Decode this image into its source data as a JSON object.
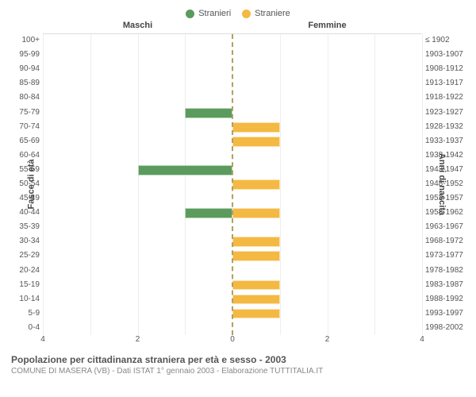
{
  "chart": {
    "type": "population-pyramid",
    "background_color": "#ffffff",
    "grid_color": "#eeeeee",
    "centerline_color": "#b0a060",
    "legend": [
      {
        "label": "Stranieri",
        "color": "#5b9b5d"
      },
      {
        "label": "Straniere",
        "color": "#f4b942"
      }
    ],
    "header_left": "Maschi",
    "header_right": "Femmine",
    "ylabel_left": "Fasce di età",
    "ylabel_right": "Anni di nascita",
    "x_max": 4,
    "x_ticks_left": [
      4,
      2,
      0
    ],
    "x_ticks_right": [
      0,
      2,
      4
    ],
    "label_fontsize": 10,
    "rows": [
      {
        "age": "100+",
        "birth": "≤ 1902",
        "m": 0,
        "f": 0
      },
      {
        "age": "95-99",
        "birth": "1903-1907",
        "m": 0,
        "f": 0
      },
      {
        "age": "90-94",
        "birth": "1908-1912",
        "m": 0,
        "f": 0
      },
      {
        "age": "85-89",
        "birth": "1913-1917",
        "m": 0,
        "f": 0
      },
      {
        "age": "80-84",
        "birth": "1918-1922",
        "m": 0,
        "f": 0
      },
      {
        "age": "75-79",
        "birth": "1923-1927",
        "m": 1,
        "f": 0
      },
      {
        "age": "70-74",
        "birth": "1928-1932",
        "m": 0,
        "f": 1
      },
      {
        "age": "65-69",
        "birth": "1933-1937",
        "m": 0,
        "f": 1
      },
      {
        "age": "60-64",
        "birth": "1938-1942",
        "m": 0,
        "f": 0
      },
      {
        "age": "55-59",
        "birth": "1943-1947",
        "m": 2,
        "f": 0
      },
      {
        "age": "50-54",
        "birth": "1948-1952",
        "m": 0,
        "f": 1
      },
      {
        "age": "45-49",
        "birth": "1953-1957",
        "m": 0,
        "f": 0
      },
      {
        "age": "40-44",
        "birth": "1958-1962",
        "m": 1,
        "f": 1
      },
      {
        "age": "35-39",
        "birth": "1963-1967",
        "m": 0,
        "f": 0
      },
      {
        "age": "30-34",
        "birth": "1968-1972",
        "m": 0,
        "f": 1
      },
      {
        "age": "25-29",
        "birth": "1973-1977",
        "m": 0,
        "f": 1
      },
      {
        "age": "20-24",
        "birth": "1978-1982",
        "m": 0,
        "f": 0
      },
      {
        "age": "15-19",
        "birth": "1983-1987",
        "m": 0,
        "f": 1
      },
      {
        "age": "10-14",
        "birth": "1988-1992",
        "m": 0,
        "f": 1
      },
      {
        "age": "5-9",
        "birth": "1993-1997",
        "m": 0,
        "f": 1
      },
      {
        "age": "0-4",
        "birth": "1998-2002",
        "m": 0,
        "f": 0
      }
    ],
    "title": "Popolazione per cittadinanza straniera per età e sesso - 2003",
    "subtitle": "COMUNE DI MASERA (VB) - Dati ISTAT 1° gennaio 2003 - Elaborazione TUTTITALIA.IT"
  }
}
